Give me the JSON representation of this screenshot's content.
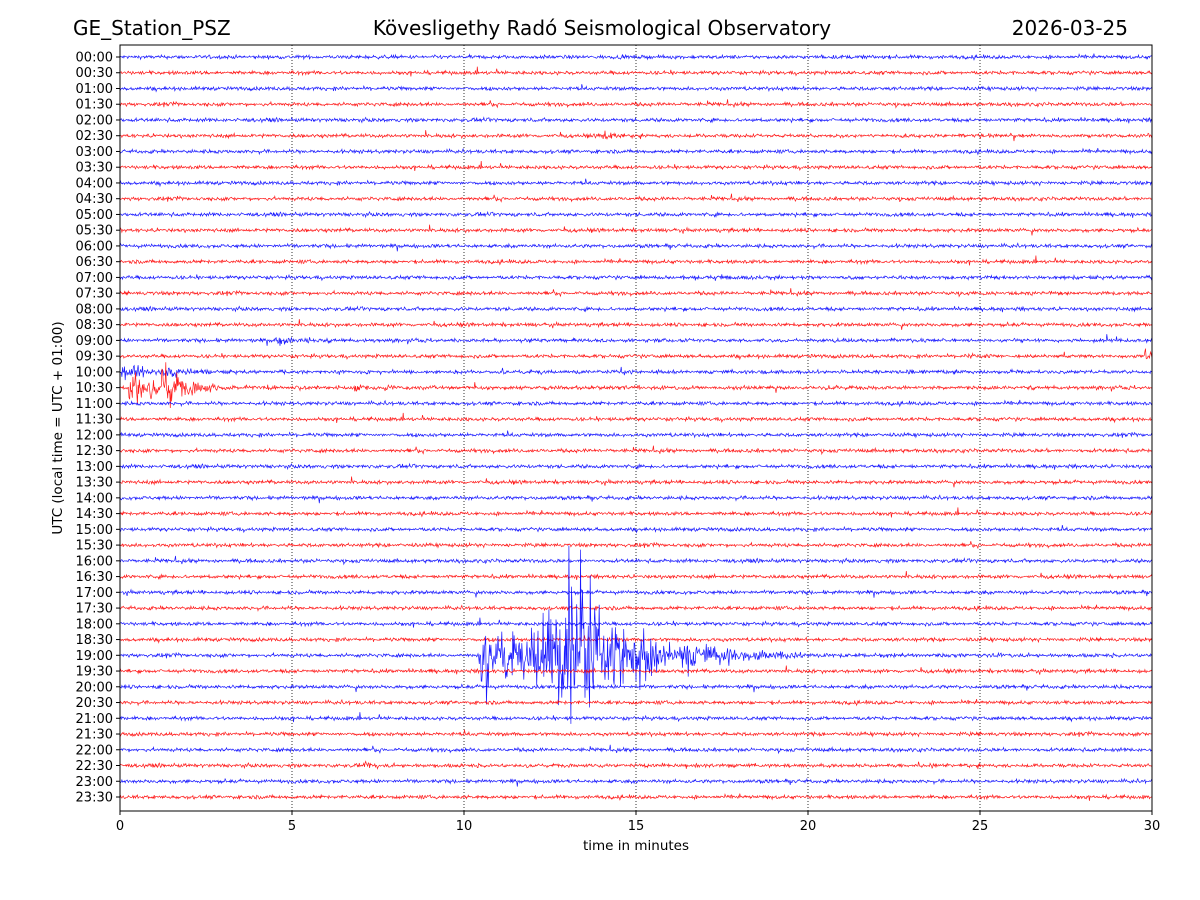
{
  "header": {
    "station": "GE_Station_PSZ",
    "observatory": "Kövesligethy Radó Seismological Observatory",
    "date": "2026-03-25"
  },
  "chart_data": {
    "type": "line",
    "subtype": "helicorder",
    "title": "Kövesligethy Radó Seismological Observatory",
    "xlabel": "time in minutes",
    "ylabel": "UTC (local time = UTC + 01:00)",
    "xlim": [
      0,
      30
    ],
    "x_ticks": [
      0,
      5,
      10,
      15,
      20,
      25,
      30
    ],
    "x_tick_labels": [
      "0",
      "5",
      "10",
      "15",
      "20",
      "25",
      "30"
    ],
    "grid": "vertical dotted at x ticks",
    "y_tick_labels": [
      "00:00",
      "00:30",
      "01:00",
      "01:30",
      "02:00",
      "02:30",
      "03:00",
      "03:30",
      "04:00",
      "04:30",
      "05:00",
      "05:30",
      "06:00",
      "06:30",
      "07:00",
      "07:30",
      "08:00",
      "08:30",
      "09:00",
      "09:30",
      "10:00",
      "10:30",
      "11:00",
      "11:30",
      "12:00",
      "12:30",
      "13:00",
      "13:30",
      "14:00",
      "14:30",
      "15:00",
      "15:30",
      "16:00",
      "16:30",
      "17:00",
      "17:30",
      "18:00",
      "18:30",
      "19:00",
      "19:30",
      "20:00",
      "20:30",
      "21:00",
      "21:30",
      "22:00",
      "22:30",
      "23:00",
      "23:30"
    ],
    "trace_colors": [
      "#0000ff",
      "#ff0000"
    ],
    "noise_amplitude_rows": 0.11,
    "events": [
      {
        "row": 5,
        "t0": 14.0,
        "amp": 0.55,
        "rise": 0.05,
        "decay": 0.4
      },
      {
        "row": 14,
        "t0": 15.6,
        "amp": 0.15,
        "rise": 1.5,
        "decay": 1.2
      },
      {
        "row": 15,
        "t0": 24.5,
        "amp": 0.2,
        "rise": 0.05,
        "decay": 0.08
      },
      {
        "row": 18,
        "t0": 4.5,
        "amp": 0.45,
        "rise": 0.05,
        "decay": 0.35
      },
      {
        "row": 18,
        "t0": 5.3,
        "amp": 0.25,
        "rise": 0.2,
        "decay": 0.4
      },
      {
        "row": 19,
        "t0": 24.5,
        "amp": 0.15,
        "rise": 0.3,
        "decay": 0.8
      },
      {
        "row": 19,
        "t0": 29.75,
        "amp": 0.6,
        "rise": 0.05,
        "decay": 0.3
      },
      {
        "row": 20,
        "t0": 0.0,
        "amp": 0.75,
        "rise": 0.05,
        "decay": 0.9
      },
      {
        "row": 20,
        "t0": 1.2,
        "amp": 0.35,
        "rise": 0.05,
        "decay": 0.7
      },
      {
        "row": 21,
        "t0": 0.25,
        "amp": 2.3,
        "rise": 0.03,
        "decay": 0.25
      },
      {
        "row": 21,
        "t0": 0.3,
        "amp": 0.9,
        "rise": 0.1,
        "decay": 0.9
      },
      {
        "row": 21,
        "t0": 1.2,
        "amp": 2.4,
        "rise": 0.03,
        "decay": 0.2
      },
      {
        "row": 21,
        "t0": 1.3,
        "amp": 0.7,
        "rise": 0.2,
        "decay": 1.0
      },
      {
        "row": 21,
        "t0": 6.8,
        "amp": 0.7,
        "rise": 0.02,
        "decay": 0.2
      },
      {
        "row": 21,
        "t0": 7.6,
        "amp": 0.4,
        "rise": 0.1,
        "decay": 0.3
      },
      {
        "row": 38,
        "t0": 10.4,
        "amp": 2.4,
        "rise": 0.1,
        "decay": 2.5
      },
      {
        "row": 38,
        "t0": 11.8,
        "amp": 3.5,
        "rise": 0.6,
        "decay": 1.3
      },
      {
        "row": 38,
        "t0": 12.9,
        "amp": 6.5,
        "rise": 0.2,
        "decay": 0.6
      },
      {
        "row": 38,
        "t0": 14.5,
        "amp": 1.5,
        "rise": 0.1,
        "decay": 1.2
      },
      {
        "row": 38,
        "t0": 16.0,
        "amp": 0.5,
        "rise": 0.3,
        "decay": 2.0
      },
      {
        "row": 45,
        "t0": 7.0,
        "amp": 0.3,
        "rise": 0.05,
        "decay": 0.4
      }
    ]
  }
}
